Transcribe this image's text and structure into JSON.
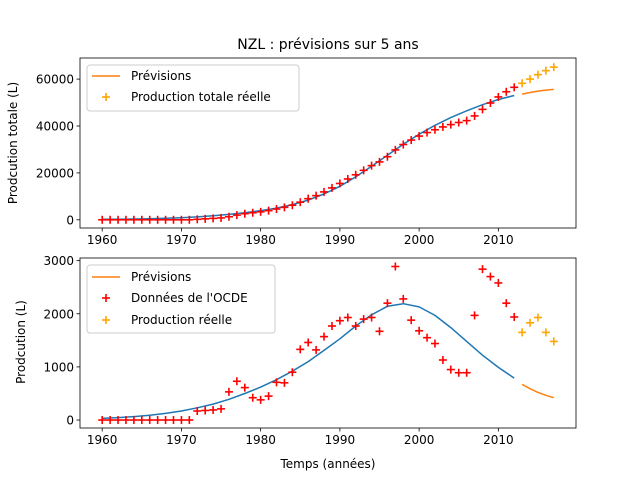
{
  "chart_data": [
    {
      "type": "line",
      "title": "NZL : prévisions sur 5 ans",
      "xlabel": "",
      "ylabel": "Prodcution totale (L)",
      "xlim": [
        1957.2,
        2019.8
      ],
      "ylim": [
        -3500,
        69000
      ],
      "xticks": [
        1960,
        1970,
        1980,
        1990,
        2000,
        2010
      ],
      "yticks": [
        0,
        20000,
        40000,
        60000
      ],
      "ytick_labels": [
        "0",
        "20000",
        "40000",
        "60000"
      ],
      "legend_position": "top-left",
      "legend": [
        {
          "label": "Prévisions",
          "kind": "line",
          "color": "#ff7f0e"
        },
        {
          "label": "Production totale réelle",
          "kind": "marker",
          "color": "#ffa500"
        }
      ],
      "series": [
        {
          "kind": "fit",
          "color": "#1f77b4",
          "x": [
            1960,
            1962,
            1964,
            1966,
            1968,
            1970,
            1972,
            1974,
            1976,
            1978,
            1980,
            1982,
            1984,
            1986,
            1988,
            1990,
            1992,
            1994,
            1996,
            1998,
            2000,
            2002,
            2004,
            2006,
            2008,
            2010,
            2012
          ],
          "values": [
            200,
            260,
            340,
            460,
            640,
            900,
            1250,
            1700,
            2300,
            3000,
            3900,
            5000,
            6500,
            8400,
            11000,
            14300,
            18300,
            22800,
            27500,
            32200,
            36500,
            40300,
            43600,
            46500,
            49100,
            51300,
            53000
          ]
        },
        {
          "name": "Prévisions",
          "kind": "line",
          "color": "#ff7f0e",
          "x": [
            2013,
            2014,
            2015,
            2016,
            2017
          ],
          "values": [
            53600,
            54300,
            54900,
            55300,
            55600
          ]
        },
        {
          "kind": "marker",
          "color": "#ff0000",
          "x": [
            1960,
            1961,
            1962,
            1963,
            1964,
            1965,
            1966,
            1967,
            1968,
            1969,
            1970,
            1971,
            1972,
            1973,
            1974,
            1975,
            1976,
            1977,
            1978,
            1979,
            1980,
            1981,
            1982,
            1983,
            1984,
            1985,
            1986,
            1987,
            1988,
            1989,
            1990,
            1991,
            1992,
            1993,
            1994,
            1995,
            1996,
            1997,
            1998,
            1999,
            2000,
            2001,
            2002,
            2003,
            2004,
            2005,
            2006,
            2007,
            2008,
            2009,
            2010,
            2011,
            2012
          ],
          "values": [
            0,
            0,
            0,
            0,
            0,
            0,
            0,
            0,
            0,
            0,
            0,
            0,
            200,
            400,
            600,
            800,
            1300,
            2000,
            2600,
            3000,
            3400,
            3900,
            4600,
            5300,
            6200,
            7500,
            9000,
            10300,
            11900,
            13600,
            15500,
            17400,
            19200,
            21100,
            23100,
            24700,
            26900,
            29800,
            32100,
            34000,
            35700,
            37200,
            38400,
            39600,
            40600,
            41500,
            42300,
            44300,
            47100,
            49800,
            52400,
            54600,
            56500
          ]
        },
        {
          "name": "Production totale réelle",
          "kind": "marker",
          "color": "#ffa500",
          "x": [
            2013,
            2014,
            2015,
            2016,
            2017
          ],
          "values": [
            58200,
            60000,
            61900,
            63600,
            65100
          ]
        }
      ]
    },
    {
      "type": "line",
      "title": "",
      "xlabel": "Temps (années)",
      "ylabel": "Prodcution (L)",
      "xlim": [
        1957.2,
        2019.8
      ],
      "ylim": [
        -150,
        3050
      ],
      "xticks": [
        1960,
        1970,
        1980,
        1990,
        2000,
        2010
      ],
      "yticks": [
        0,
        1000,
        2000,
        3000
      ],
      "ytick_labels": [
        "0",
        "1000",
        "2000",
        "3000"
      ],
      "legend_position": "top-left",
      "legend": [
        {
          "label": "Prévisions",
          "kind": "line",
          "color": "#ff7f0e"
        },
        {
          "label": "Données de l'OCDE",
          "kind": "marker",
          "color": "#ff0000"
        },
        {
          "label": "Production réelle",
          "kind": "marker",
          "color": "#ffa500"
        }
      ],
      "series": [
        {
          "kind": "fit",
          "color": "#1f77b4",
          "x": [
            1960,
            1962,
            1964,
            1966,
            1968,
            1970,
            1972,
            1974,
            1976,
            1978,
            1980,
            1982,
            1984,
            1986,
            1988,
            1990,
            1992,
            1994,
            1996,
            1998,
            2000,
            2002,
            2004,
            2006,
            2008,
            2010,
            2012
          ],
          "values": [
            30,
            45,
            65,
            90,
            125,
            170,
            230,
            300,
            390,
            500,
            620,
            760,
            920,
            1100,
            1310,
            1530,
            1770,
            1980,
            2140,
            2190,
            2130,
            1970,
            1740,
            1480,
            1220,
            990,
            790
          ]
        },
        {
          "name": "Prévisions",
          "kind": "line",
          "color": "#ff7f0e",
          "x": [
            2013,
            2014,
            2015,
            2016,
            2017
          ],
          "values": [
            670,
            590,
            520,
            465,
            420
          ]
        },
        {
          "name": "Données de l'OCDE",
          "kind": "marker",
          "color": "#ff0000",
          "x": [
            1960,
            1961,
            1962,
            1963,
            1964,
            1965,
            1966,
            1967,
            1968,
            1969,
            1970,
            1971,
            1972,
            1973,
            1974,
            1975,
            1976,
            1977,
            1978,
            1979,
            1980,
            1981,
            1982,
            1983,
            1984,
            1985,
            1986,
            1987,
            1988,
            1989,
            1990,
            1991,
            1992,
            1993,
            1994,
            1995,
            1996,
            1997,
            1998,
            1999,
            2000,
            2001,
            2002,
            2003,
            2004,
            2005,
            2006,
            2007,
            2008,
            2009,
            2010,
            2011,
            2012
          ],
          "values": [
            0,
            0,
            0,
            0,
            0,
            0,
            0,
            0,
            0,
            0,
            0,
            0,
            170,
            180,
            190,
            210,
            530,
            730,
            610,
            420,
            380,
            450,
            710,
            700,
            900,
            1330,
            1460,
            1320,
            1570,
            1770,
            1870,
            1930,
            1770,
            1900,
            1930,
            1670,
            2200,
            2890,
            2280,
            1880,
            1680,
            1550,
            1440,
            1130,
            950,
            890,
            890,
            1970,
            2840,
            2700,
            2580,
            2200,
            1940
          ]
        },
        {
          "name": "Production réelle",
          "kind": "marker",
          "color": "#ffa500",
          "x": [
            2013,
            2014,
            2015,
            2016,
            2017
          ],
          "values": [
            1650,
            1830,
            1930,
            1650,
            1480
          ]
        }
      ]
    }
  ]
}
